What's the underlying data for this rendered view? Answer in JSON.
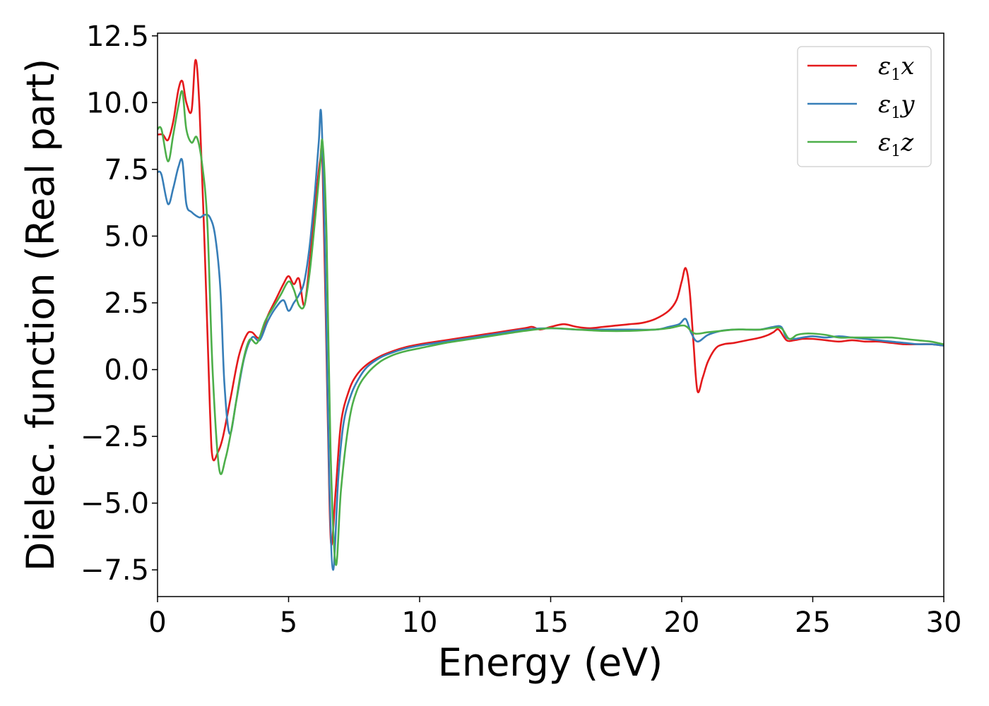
{
  "chart_data": {
    "type": "line",
    "title": "",
    "xlabel": "Energy (eV)",
    "ylabel": "Dielec. function (Real part)",
    "xlim": [
      0,
      30
    ],
    "ylim": [
      -8.5,
      12.6
    ],
    "x_ticks": [
      0,
      5,
      10,
      15,
      20,
      25,
      30
    ],
    "y_ticks": [
      -7.5,
      -5.0,
      -2.5,
      0.0,
      2.5,
      5.0,
      7.5,
      10.0,
      12.5
    ],
    "x_tick_labels": [
      "0",
      "5",
      "10",
      "15",
      "20",
      "25",
      "30"
    ],
    "y_tick_labels": [
      "−7.5",
      "−5.0",
      "−2.5",
      "0.0",
      "2.5",
      "5.0",
      "7.5",
      "10.0",
      "12.5"
    ],
    "grid": false,
    "legend_position": "top-right",
    "series": [
      {
        "name": "ε1x",
        "legend": {
          "symbol": "ε",
          "sub": "1",
          "axis": "x"
        },
        "color": "#e41a1c",
        "x": [
          0,
          0.2,
          0.4,
          0.6,
          0.8,
          0.95,
          1.1,
          1.3,
          1.45,
          1.6,
          1.8,
          2.0,
          2.1,
          2.3,
          2.5,
          2.8,
          3.1,
          3.4,
          3.6,
          3.9,
          4.2,
          4.5,
          4.8,
          5.0,
          5.2,
          5.4,
          5.6,
          5.8,
          6.0,
          6.2,
          6.3,
          6.5,
          6.62,
          6.8,
          7.0,
          7.3,
          7.6,
          8.0,
          8.5,
          9.0,
          9.5,
          10.0,
          11.0,
          12.0,
          13.0,
          14.0,
          14.3,
          14.6,
          15.0,
          15.5,
          16.0,
          16.5,
          17.0,
          17.5,
          18.0,
          18.5,
          19.0,
          19.5,
          19.8,
          20.0,
          20.15,
          20.3,
          20.45,
          20.6,
          20.8,
          21.0,
          21.3,
          21.6,
          22.0,
          22.5,
          23.0,
          23.3,
          23.5,
          23.7,
          24.0,
          24.3,
          24.6,
          25.0,
          25.5,
          26.0,
          26.5,
          27.0,
          27.5,
          28.0,
          28.5,
          29.0,
          29.5,
          30.0
        ],
        "y": [
          8.8,
          8.8,
          8.6,
          9.3,
          10.5,
          10.8,
          10.0,
          9.7,
          11.6,
          9.8,
          4.5,
          -1.5,
          -3.3,
          -3.1,
          -2.5,
          -1.0,
          0.5,
          1.3,
          1.4,
          1.2,
          2.0,
          2.6,
          3.2,
          3.5,
          3.2,
          3.4,
          2.4,
          4.0,
          6.0,
          7.8,
          7.5,
          -2.0,
          -6.5,
          -4.5,
          -2.0,
          -0.8,
          -0.2,
          0.2,
          0.5,
          0.7,
          0.85,
          0.95,
          1.1,
          1.25,
          1.4,
          1.55,
          1.6,
          1.5,
          1.6,
          1.7,
          1.6,
          1.55,
          1.6,
          1.65,
          1.7,
          1.75,
          1.9,
          2.2,
          2.6,
          3.3,
          3.8,
          3.0,
          1.0,
          -0.8,
          -0.3,
          0.3,
          0.8,
          0.95,
          1.0,
          1.1,
          1.2,
          1.3,
          1.4,
          1.5,
          1.1,
          1.1,
          1.15,
          1.15,
          1.1,
          1.05,
          1.1,
          1.05,
          1.05,
          1.0,
          0.95,
          0.95,
          0.95,
          0.9
        ]
      },
      {
        "name": "ε1y",
        "legend": {
          "symbol": "ε",
          "sub": "1",
          "axis": "y"
        },
        "color": "#377eb8",
        "x": [
          0,
          0.15,
          0.4,
          0.6,
          0.8,
          0.95,
          1.1,
          1.3,
          1.6,
          1.8,
          2.0,
          2.2,
          2.4,
          2.55,
          2.75,
          3.0,
          3.3,
          3.6,
          3.9,
          4.2,
          4.5,
          4.8,
          5.0,
          5.2,
          5.4,
          5.6,
          5.8,
          6.0,
          6.15,
          6.25,
          6.4,
          6.55,
          6.7,
          6.9,
          7.1,
          7.4,
          7.7,
          8.0,
          8.5,
          9.0,
          9.5,
          10.0,
          11.0,
          12.0,
          13.0,
          14.0,
          15.0,
          16.0,
          17.0,
          18.0,
          19.0,
          19.5,
          19.9,
          20.15,
          20.35,
          20.6,
          21.0,
          21.5,
          22.0,
          22.5,
          23.0,
          23.5,
          23.8,
          24.0,
          24.3,
          24.6,
          25.0,
          25.5,
          26.0,
          26.5,
          27.0,
          27.5,
          28.0,
          28.5,
          29.0,
          29.5,
          30.0
        ],
        "y": [
          7.4,
          7.3,
          6.2,
          6.8,
          7.6,
          7.8,
          6.2,
          5.9,
          5.7,
          5.8,
          5.7,
          5.0,
          3.0,
          -0.5,
          -2.4,
          -1.2,
          0.4,
          1.2,
          1.1,
          1.8,
          2.3,
          2.6,
          2.2,
          2.5,
          2.8,
          3.3,
          4.6,
          6.6,
          8.5,
          9.5,
          4.0,
          -4.0,
          -7.5,
          -4.0,
          -2.0,
          -0.9,
          -0.3,
          0.1,
          0.45,
          0.65,
          0.8,
          0.9,
          1.05,
          1.2,
          1.35,
          1.5,
          1.55,
          1.5,
          1.5,
          1.5,
          1.5,
          1.6,
          1.7,
          1.9,
          1.4,
          1.05,
          1.3,
          1.45,
          1.5,
          1.5,
          1.5,
          1.6,
          1.6,
          1.2,
          1.15,
          1.2,
          1.25,
          1.2,
          1.25,
          1.2,
          1.15,
          1.1,
          1.05,
          1.0,
          0.95,
          0.95,
          0.9
        ]
      },
      {
        "name": "ε1z",
        "legend": {
          "symbol": "ε",
          "sub": "1",
          "axis": "z"
        },
        "color": "#4daf4a",
        "x": [
          0,
          0.15,
          0.4,
          0.6,
          0.8,
          0.95,
          1.1,
          1.3,
          1.5,
          1.7,
          1.9,
          2.1,
          2.35,
          2.6,
          2.9,
          3.2,
          3.5,
          3.8,
          4.1,
          4.4,
          4.7,
          5.0,
          5.2,
          5.4,
          5.6,
          5.8,
          6.0,
          6.2,
          6.3,
          6.45,
          6.6,
          6.8,
          7.0,
          7.3,
          7.6,
          8.0,
          8.5,
          9.0,
          9.5,
          10.0,
          11.0,
          12.0,
          13.0,
          14.0,
          15.0,
          16.0,
          17.0,
          18.0,
          19.0,
          19.5,
          20.0,
          20.2,
          20.5,
          21.0,
          21.5,
          22.0,
          22.5,
          23.0,
          23.4,
          23.8,
          24.1,
          24.4,
          24.7,
          25.0,
          25.5,
          26.0,
          26.5,
          27.0,
          27.5,
          28.0,
          28.5,
          29.0,
          29.5,
          30.0
        ],
        "y": [
          9.0,
          9.0,
          7.8,
          8.8,
          9.9,
          10.4,
          9.0,
          8.5,
          8.7,
          7.7,
          5.5,
          0.0,
          -3.7,
          -3.3,
          -1.8,
          0.0,
          1.1,
          1.0,
          1.8,
          2.3,
          2.8,
          3.3,
          3.0,
          2.4,
          2.4,
          3.6,
          5.5,
          7.6,
          8.5,
          5.0,
          -3.0,
          -7.3,
          -4.5,
          -2.0,
          -0.8,
          -0.15,
          0.3,
          0.55,
          0.7,
          0.8,
          1.0,
          1.15,
          1.3,
          1.45,
          1.55,
          1.5,
          1.45,
          1.45,
          1.5,
          1.55,
          1.65,
          1.6,
          1.35,
          1.4,
          1.45,
          1.5,
          1.5,
          1.5,
          1.55,
          1.55,
          1.15,
          1.3,
          1.35,
          1.35,
          1.3,
          1.2,
          1.2,
          1.2,
          1.2,
          1.2,
          1.15,
          1.1,
          1.05,
          0.95
        ]
      }
    ]
  }
}
